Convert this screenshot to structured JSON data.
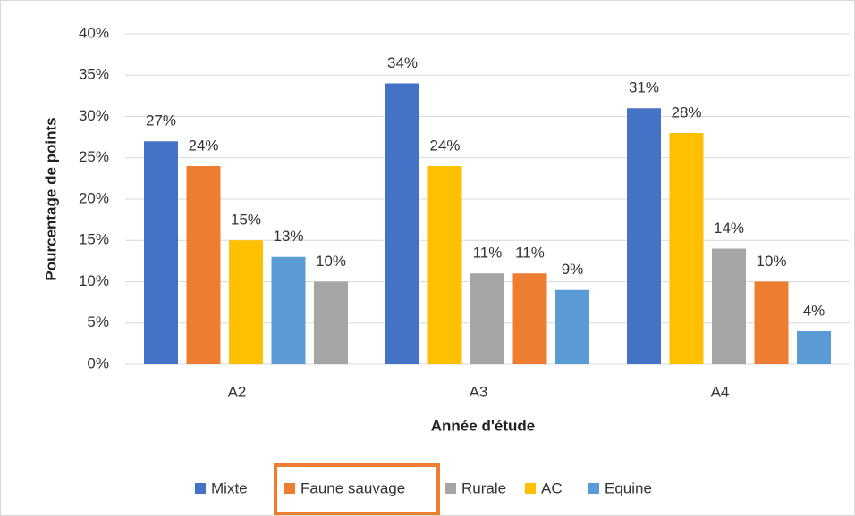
{
  "chart_data": {
    "type": "bar",
    "x_label": "Année d'étude",
    "y_label": "Pourcentage de points",
    "categories": [
      "A2",
      "A3",
      "A4"
    ],
    "series": [
      {
        "name": "Mixte",
        "color": "#4472c4",
        "values": [
          27,
          34,
          31
        ],
        "value_labels": [
          "27%",
          "34%",
          "31%"
        ]
      },
      {
        "name": "Faune sauvage",
        "color": "#ed7d31",
        "values": [
          24,
          11,
          10
        ],
        "value_labels": [
          "24%",
          "11%",
          "10%"
        ]
      },
      {
        "name": "Rurale",
        "color": "#a5a5a5",
        "values": [
          10,
          11,
          14
        ],
        "value_labels": [
          "10%",
          "11%",
          "14%"
        ]
      },
      {
        "name": "AC",
        "color": "#ffc000",
        "values": [
          15,
          24,
          28
        ],
        "value_labels": [
          "15%",
          "24%",
          "28%"
        ]
      },
      {
        "name": "Equine",
        "color": "#5b9bd5",
        "values": [
          13,
          9,
          4
        ],
        "value_labels": [
          "13%",
          "9%",
          "4%"
        ]
      }
    ],
    "ylim": [
      0,
      40
    ],
    "yticks": [
      {
        "value": 0,
        "label": "0%"
      },
      {
        "value": 5,
        "label": "5%"
      },
      {
        "value": 10,
        "label": "10%"
      },
      {
        "value": 15,
        "label": "15%"
      },
      {
        "value": 20,
        "label": "20%"
      },
      {
        "value": 25,
        "label": "25%"
      },
      {
        "value": 30,
        "label": "30%"
      },
      {
        "value": 35,
        "label": "35%"
      },
      {
        "value": 40,
        "label": "40%"
      }
    ],
    "grid": true,
    "legend": "bottom"
  }
}
